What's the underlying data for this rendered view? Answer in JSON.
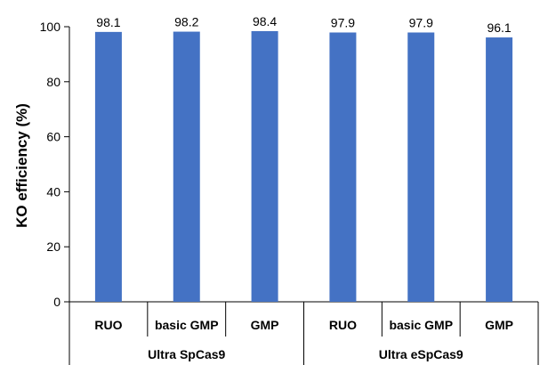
{
  "chart_data": {
    "type": "bar",
    "ylabel": "KO efficiency (%)",
    "xlabel": "",
    "ylim": [
      0,
      100
    ],
    "yticks": [
      0,
      20,
      40,
      60,
      80,
      100
    ],
    "categories": [
      "RUO",
      "basic GMP",
      "GMP",
      "RUO",
      "basic GMP",
      "GMP"
    ],
    "groups": [
      {
        "label": "Ultra SpCas9",
        "span": 3
      },
      {
        "label": "Ultra eSpCas9",
        "span": 3
      }
    ],
    "values": [
      98.1,
      98.2,
      98.4,
      97.9,
      97.9,
      96.1
    ],
    "data_labels": [
      "98.1",
      "98.2",
      "98.4",
      "97.9",
      "97.9",
      "96.1"
    ],
    "bar_color": "#4472c4",
    "axis_color": "#000000",
    "grid": false,
    "legend": "none"
  }
}
